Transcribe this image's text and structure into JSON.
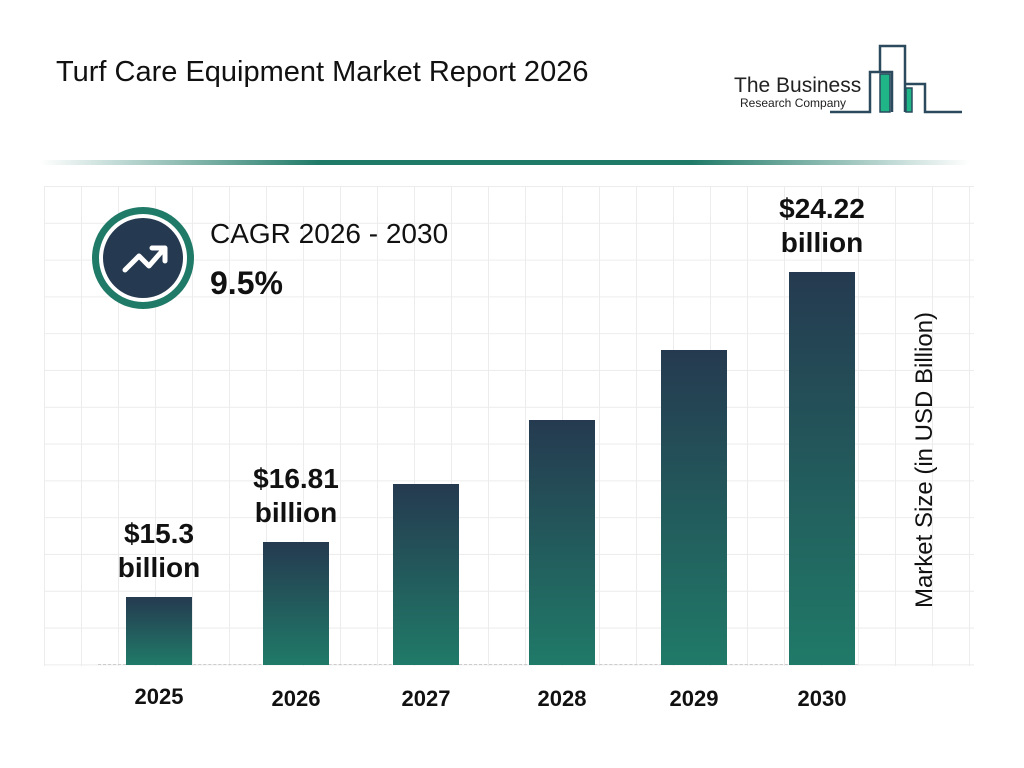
{
  "title": "Turf Care Equipment Market Report 2026",
  "logo": {
    "line1": "The Business",
    "line2": "Research Company"
  },
  "cagr": {
    "label": "CAGR 2026 - 2030",
    "value": "9.5%",
    "icon": "trending-up-icon"
  },
  "colors": {
    "bar_top": "#253a50",
    "bar_bottom": "#207a68",
    "accent": "#207a68"
  },
  "chart_data": {
    "type": "bar",
    "title": "Turf Care Equipment Market Report 2026",
    "categories": [
      "2025",
      "2026",
      "2027",
      "2028",
      "2029",
      "2030"
    ],
    "values": [
      15.3,
      16.81,
      18.41,
      20.16,
      22.07,
      24.22
    ],
    "data_labels": [
      "$15.3 billion",
      "$16.81 billion",
      "",
      "",
      "",
      "$24.22 billion"
    ],
    "ylabel": "Market Size (in USD Billion)",
    "xlabel": "",
    "grid": true,
    "legend": "none"
  }
}
